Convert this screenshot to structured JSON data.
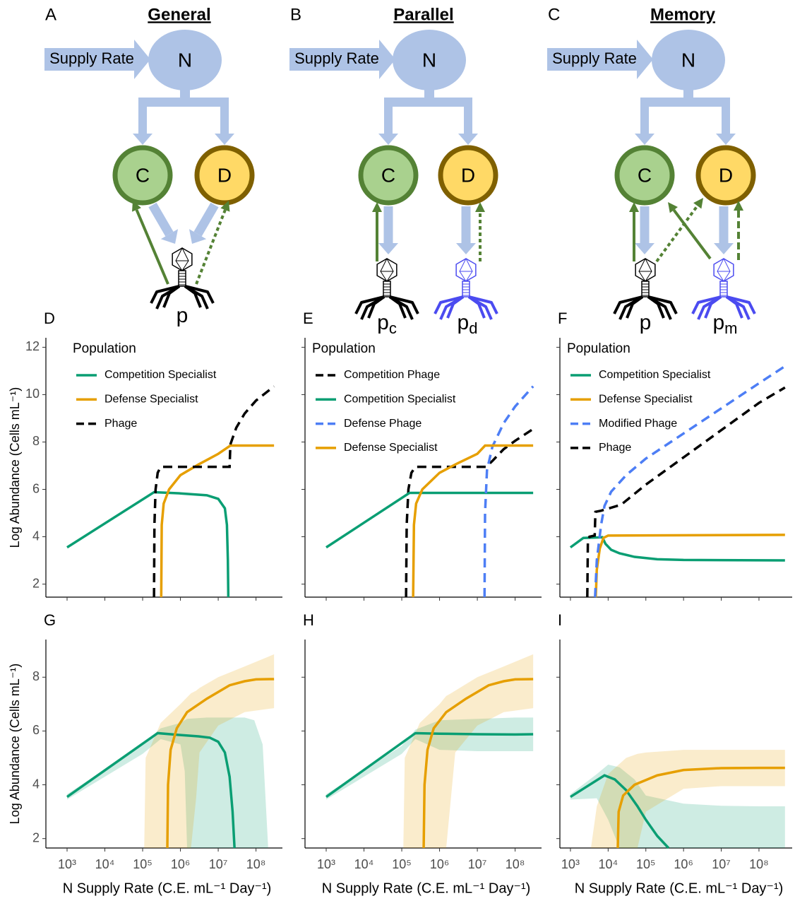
{
  "diagrams": [
    {
      "letter": "A",
      "title": "General",
      "supply": "Supply Rate",
      "n": "N",
      "c": "C",
      "d": "D",
      "phages": [
        {
          "base": "p"
        }
      ]
    },
    {
      "letter": "B",
      "title": "Parallel",
      "supply": "Supply Rate",
      "n": "N",
      "c": "C",
      "d": "D",
      "phages": [
        {
          "base": "p",
          "sub": "c"
        },
        {
          "base": "p",
          "sub": "d"
        }
      ]
    },
    {
      "letter": "C",
      "title": "Memory",
      "supply": "Supply Rate",
      "n": "N",
      "c": "C",
      "d": "D",
      "phages": [
        {
          "base": "p"
        },
        {
          "base": "p",
          "sub": "m"
        }
      ]
    }
  ],
  "chart_data": [
    {
      "type": "line",
      "panel": "D",
      "xscale": "log",
      "xlim": [
        275,
        500000000.0
      ],
      "ylim": [
        1.45,
        12.4
      ],
      "xticks": [
        1000.0,
        10000.0,
        100000.0,
        1000000.0,
        10000000.0,
        100000000.0
      ],
      "yticks": [
        2,
        4,
        6,
        8,
        10,
        12
      ],
      "x_tick_labels": false,
      "y_tick_labels": true,
      "ylabel": "Log Abundance (Cells mL⁻¹)",
      "legend_title": "Population",
      "series": [
        {
          "name": "Competition Specialist",
          "color": "#0a9e73",
          "dash": false,
          "x": [
            1000.0,
            200000.0,
            1000000.0,
            5000000.0,
            10000000.0,
            15000000.0,
            17000000.0,
            18000000.0,
            18500000.0
          ],
          "values": [
            3.55,
            5.88,
            5.83,
            5.75,
            5.6,
            5.2,
            4.5,
            3,
            1.45
          ]
        },
        {
          "name": "Defense Specialist",
          "color": "#e69f00",
          "dash": false,
          "x": [
            310000.0,
            320000.0,
            360000.0,
            500000.0,
            1000000.0,
            3000000.0,
            10000000.0,
            21000000.0,
            300000000.0
          ],
          "values": [
            1.45,
            4.5,
            5.4,
            6.0,
            6.6,
            7.05,
            7.5,
            7.85,
            7.85
          ]
        },
        {
          "name": "Phage",
          "color": "#000000",
          "dash": true,
          "x": [
            200000.0,
            205000.0,
            220000.0,
            250000.0,
            300000.0,
            20000000.0,
            21000000.0,
            30000000.0,
            50000000.0,
            100000000.0,
            300000000.0
          ],
          "values": [
            1.45,
            4.5,
            6.0,
            6.7,
            6.95,
            6.95,
            7.9,
            8.6,
            9.2,
            9.75,
            10.35
          ]
        }
      ]
    },
    {
      "type": "line",
      "panel": "E",
      "xscale": "log",
      "xlim": [
        275,
        500000000.0
      ],
      "ylim": [
        1.45,
        12.4
      ],
      "xticks": [
        1000.0,
        10000.0,
        100000.0,
        1000000.0,
        10000000.0,
        100000000.0
      ],
      "yticks": [
        2,
        4,
        6,
        8,
        10,
        12
      ],
      "x_tick_labels": false,
      "y_tick_labels": false,
      "legend_title": "Population",
      "series": [
        {
          "name": "Competition Phage",
          "color": "#000000",
          "dash": true,
          "x": [
            130000.0,
            135000.0,
            150000.0,
            180000.0,
            230000.0,
            17000000.0,
            25000000.0,
            50000000.0,
            100000000.0,
            300000000.0
          ],
          "values": [
            1.45,
            4.5,
            6.0,
            6.7,
            6.95,
            6.95,
            7.2,
            7.7,
            8.05,
            8.55
          ]
        },
        {
          "name": "Competition Specialist",
          "color": "#0a9e73",
          "dash": false,
          "x": [
            1000.0,
            160000.0,
            300000000.0
          ],
          "values": [
            3.55,
            5.85,
            5.85
          ]
        },
        {
          "name": "Defense Phage",
          "color": "#4d7ef5",
          "dash": true,
          "x": [
            15500000.0,
            16000000.0,
            18000000.0,
            25000000.0,
            50000000.0,
            100000000.0,
            300000000.0
          ],
          "values": [
            1.45,
            5.0,
            6.8,
            7.8,
            8.8,
            9.5,
            10.35
          ]
        },
        {
          "name": "Defense Specialist",
          "color": "#e69f00",
          "dash": false,
          "x": [
            200000.0,
            210000.0,
            240000.0,
            350000.0,
            1000000.0,
            3000000.0,
            10000000.0,
            16000000.0,
            300000000.0
          ],
          "values": [
            1.45,
            4.5,
            5.4,
            6.0,
            6.7,
            7.1,
            7.5,
            7.85,
            7.85
          ]
        }
      ]
    },
    {
      "type": "line",
      "panel": "F",
      "xscale": "log",
      "xlim": [
        525,
        760000000.0
      ],
      "ylim": [
        1.45,
        12.4
      ],
      "xticks": [
        1000.0,
        10000.0,
        100000.0,
        1000000.0,
        10000000.0,
        100000000.0
      ],
      "yticks": [
        2,
        4,
        6,
        8,
        10,
        12
      ],
      "x_tick_labels": false,
      "y_tick_labels": false,
      "legend_title": "Population",
      "series": [
        {
          "name": "Competition Specialist",
          "color": "#0a9e73",
          "dash": false,
          "x": [
            1000.0,
            2200.0,
            5500.0,
            7000.0,
            8500.0,
            12000.0,
            20000.0,
            50000.0,
            200000.0,
            1000000.0,
            490000000.0
          ],
          "values": [
            3.55,
            3.95,
            3.97,
            3.98,
            3.7,
            3.45,
            3.3,
            3.15,
            3.05,
            3.02,
            3.0
          ]
        },
        {
          "name": "Defense Specialist",
          "color": "#e69f00",
          "dash": false,
          "x": [
            4700.0,
            5000.0,
            6000.0,
            7500.0,
            10000.0,
            490000000.0
          ],
          "values": [
            1.45,
            2.6,
            3.5,
            3.95,
            4.05,
            4.08
          ]
        },
        {
          "name": "Modified Phage",
          "color": "#4d7ef5",
          "dash": true,
          "x": [
            4500.0,
            5000.0,
            6500.0,
            8000.0,
            12000.0,
            30000.0,
            100000.0,
            1000000.0,
            10000000.0,
            100000000.0,
            490000000.0
          ],
          "values": [
            1.45,
            3.0,
            4.5,
            5.3,
            5.9,
            6.6,
            7.3,
            8.36,
            9.42,
            10.48,
            11.2
          ]
        },
        {
          "name": "Phage",
          "color": "#000000",
          "dash": true,
          "x": [
            2800.0,
            2900.0,
            3200.0,
            4400.0,
            4600.0,
            6500.0,
            22000.0,
            100000.0,
            1000000.0,
            10000000.0,
            100000000.0,
            490000000.0
          ],
          "values": [
            1.45,
            3.8,
            4.0,
            4.05,
            5.05,
            5.1,
            5.35,
            6.2,
            7.35,
            8.5,
            9.65,
            10.3
          ]
        }
      ]
    },
    {
      "type": "line",
      "panel": "G",
      "xscale": "log",
      "xlim": [
        275,
        500000000.0
      ],
      "ylim": [
        1.65,
        9.4
      ],
      "xticks": [
        {
          "value": 1000.0,
          "label": "10³"
        },
        {
          "value": 10000.0,
          "label": "10⁴"
        },
        {
          "value": 100000.0,
          "label": "10⁵"
        },
        {
          "value": 1000000.0,
          "label": "10⁶"
        },
        {
          "value": 10000000.0,
          "label": "10⁷"
        },
        {
          "value": 100000000.0,
          "label": "10⁸"
        }
      ],
      "yticks": [
        2,
        4,
        6,
        8
      ],
      "x_tick_labels": true,
      "y_tick_labels": true,
      "ylabel": "Log Abundance (Cells mL⁻¹)",
      "xlabel": "N Supply Rate (C.E. mL⁻¹ Day⁻¹)",
      "series": [
        {
          "color": "#0a9e73",
          "x": [
            1000.0,
            100000.0,
            300000.0,
            1000000.0,
            1300000.0,
            1500000.0,
            5000000.0,
            10000000.0,
            50000000.0,
            90000000.0,
            150000000.0,
            210000000.0
          ],
          "lower": [
            3.45,
            5.15,
            5.7,
            5.5,
            4.5,
            1.65,
            1.65,
            1.65,
            1.65,
            1.65,
            1.65,
            1.65
          ],
          "upper": [
            3.65,
            5.5,
            6.1,
            6.3,
            6.4,
            6.45,
            6.5,
            6.5,
            6.5,
            6.4,
            5.5,
            1.65
          ]
        },
        {
          "color": "#e69f00",
          "x": [
            110000.0,
            120000.0,
            300000.0,
            1000000.0,
            1900000.0,
            2600000.0,
            3200000.0,
            10000000.0,
            50000000.0,
            300000000.0
          ],
          "lower": [
            1.65,
            1.65,
            1.65,
            1.65,
            1.65,
            3.5,
            5.2,
            6.2,
            6.7,
            6.85
          ],
          "upper": [
            1.65,
            5.0,
            6.3,
            7.0,
            7.4,
            7.5,
            7.6,
            8.0,
            8.4,
            8.85
          ]
        },
        {
          "color": "#0a9e73",
          "dash": false,
          "x": [
            1000.0,
            250000.0,
            1000000.0,
            3000000.0,
            6000000.0,
            10000000.0,
            15000000.0,
            20000000.0,
            24000000.0,
            27000000.0
          ],
          "values": [
            3.55,
            5.92,
            5.85,
            5.8,
            5.75,
            5.6,
            5.2,
            4.3,
            3,
            1.65
          ]
        },
        {
          "color": "#e69f00",
          "dash": false,
          "x": [
            450000.0,
            470000.0,
            550000.0,
            800000.0,
            1500000.0,
            5000000.0,
            20000000.0,
            50000000.0,
            100000000.0,
            300000000.0
          ],
          "values": [
            1.65,
            4.0,
            5.3,
            6.1,
            6.7,
            7.2,
            7.7,
            7.85,
            7.92,
            7.93
          ]
        }
      ]
    },
    {
      "type": "line",
      "panel": "H",
      "xscale": "log",
      "xlim": [
        275,
        500000000.0
      ],
      "ylim": [
        1.65,
        9.4
      ],
      "xticks": [
        {
          "value": 1000.0,
          "label": "10³"
        },
        {
          "value": 10000.0,
          "label": "10⁴"
        },
        {
          "value": 100000.0,
          "label": "10⁵"
        },
        {
          "value": 1000000.0,
          "label": "10⁶"
        },
        {
          "value": 10000000.0,
          "label": "10⁷"
        },
        {
          "value": 100000000.0,
          "label": "10⁸"
        }
      ],
      "yticks": [
        2,
        4,
        6,
        8
      ],
      "x_tick_labels": true,
      "y_tick_labels": false,
      "xlabel": "N Supply Rate (C.E. mL⁻¹ Day⁻¹)",
      "series": [
        {
          "color": "#0a9e73",
          "x": [
            1000.0,
            100000.0,
            230000.0,
            1000000.0,
            10000000.0,
            100000000.0,
            300000000.0
          ],
          "lower": [
            3.45,
            5.15,
            5.7,
            5.3,
            5.25,
            5.25,
            5.25
          ],
          "upper": [
            3.65,
            5.45,
            6.05,
            6.4,
            6.45,
            6.5,
            6.5
          ]
        },
        {
          "color": "#e69f00",
          "x": [
            110000.0,
            120000.0,
            300000.0,
            1000000.0,
            1500000.0,
            2000000.0,
            2600000.0,
            10000000.0,
            50000000.0,
            300000000.0
          ],
          "lower": [
            1.65,
            1.65,
            1.65,
            1.65,
            1.65,
            3.5,
            5.2,
            6.2,
            6.7,
            6.85
          ],
          "upper": [
            1.65,
            5.0,
            6.3,
            7.0,
            7.3,
            7.4,
            7.5,
            8.0,
            8.4,
            8.85
          ]
        },
        {
          "color": "#0a9e73",
          "dash": false,
          "x": [
            1000.0,
            230000.0,
            1000000.0,
            10000000.0,
            100000000.0,
            300000000.0
          ],
          "values": [
            3.55,
            5.92,
            5.9,
            5.88,
            5.87,
            5.88
          ]
        },
        {
          "color": "#e69f00",
          "dash": false,
          "x": [
            380000.0,
            400000.0,
            480000.0,
            700000.0,
            1500000.0,
            5000000.0,
            20000000.0,
            50000000.0,
            100000000.0,
            300000000.0
          ],
          "values": [
            1.65,
            4.0,
            5.3,
            6.1,
            6.7,
            7.2,
            7.7,
            7.85,
            7.92,
            7.93
          ]
        }
      ]
    },
    {
      "type": "line",
      "panel": "I",
      "xscale": "log",
      "xlim": [
        525,
        760000000.0
      ],
      "ylim": [
        1.65,
        9.4
      ],
      "xticks": [
        {
          "value": 1000.0,
          "label": "10³"
        },
        {
          "value": 10000.0,
          "label": "10⁴"
        },
        {
          "value": 100000.0,
          "label": "10⁵"
        },
        {
          "value": 1000000.0,
          "label": "10⁶"
        },
        {
          "value": 10000000.0,
          "label": "10⁷"
        },
        {
          "value": 100000000.0,
          "label": "10⁸"
        }
      ],
      "yticks": [
        2,
        4,
        6,
        8
      ],
      "x_tick_labels": true,
      "y_tick_labels": false,
      "xlabel": "N Supply Rate (C.E. mL⁻¹ Day⁻¹)",
      "series": [
        {
          "color": "#0a9e73",
          "x": [
            1000.0,
            5000.0,
            10000.0,
            20000.0,
            50000.0,
            100000.0,
            1000000.0,
            10000000.0,
            100000000.0,
            490000000.0
          ],
          "lower": [
            3.45,
            3.5,
            2.7,
            1.65,
            1.65,
            1.65,
            1.65,
            1.65,
            1.65,
            1.65
          ],
          "upper": [
            3.65,
            4.4,
            4.75,
            4.65,
            4.2,
            3.6,
            3.3,
            3.22,
            3.2,
            3.2
          ]
        },
        {
          "color": "#e69f00",
          "x": [
            3500.0,
            5000.0,
            10000.0,
            30000.0,
            60000.0,
            100000.0,
            1000000.0,
            10000000.0,
            100000000.0,
            490000000.0
          ],
          "lower": [
            1.65,
            1.65,
            1.65,
            1.65,
            1.65,
            3.0,
            3.85,
            3.95,
            3.95,
            3.95
          ],
          "upper": [
            1.65,
            3.2,
            4.4,
            5.0,
            5.15,
            5.2,
            5.3,
            5.3,
            5.3,
            5.3
          ]
        },
        {
          "color": "#0a9e73",
          "dash": false,
          "x": [
            1000.0,
            8000.0,
            15000.0,
            30000.0,
            60000.0,
            100000.0,
            200000.0,
            400000.0
          ],
          "values": [
            3.55,
            4.35,
            4.2,
            3.8,
            3.2,
            2.7,
            2.1,
            1.65
          ]
        },
        {
          "color": "#e69f00",
          "dash": false,
          "x": [
            18000.0,
            19000.0,
            25000.0,
            50000.0,
            200000.0,
            1000000.0,
            10000000.0,
            100000000.0,
            490000000.0
          ],
          "values": [
            1.65,
            3.0,
            3.6,
            4.0,
            4.35,
            4.55,
            4.62,
            4.63,
            4.63
          ]
        }
      ]
    }
  ]
}
